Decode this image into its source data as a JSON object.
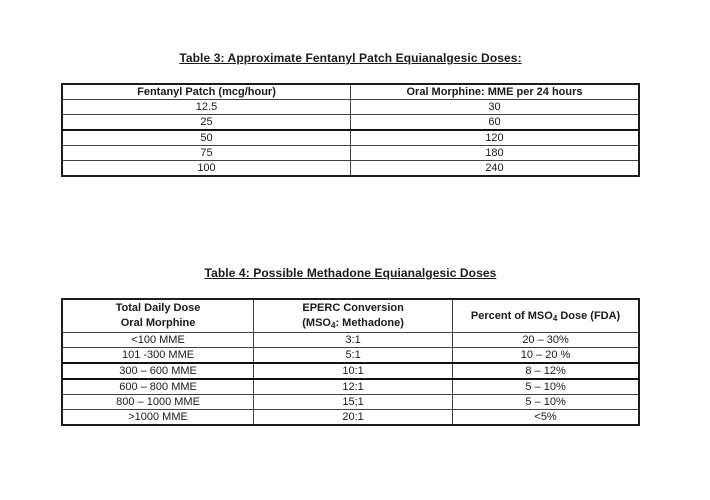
{
  "colors": {
    "background": "#ffffff",
    "text": "#1a1a1a",
    "inner_border": "#424242",
    "outer_border": "#1c1c1c"
  },
  "table3": {
    "title": "Table 3: Approximate Fentanyl Patch Equianalgesic Doses:",
    "columns": [
      "Fentanyl Patch (mcg/hour)",
      "Oral Morphine: MME per 24 hours"
    ],
    "rows": [
      [
        "12.5",
        "30"
      ],
      [
        "25",
        "60"
      ],
      [
        "50",
        "120"
      ],
      [
        "75",
        "180"
      ],
      [
        "100",
        "240"
      ]
    ]
  },
  "table4": {
    "title": "Table 4: Possible Methadone Equianalgesic Doses",
    "col1_header": {
      "line1": "Total Daily Dose",
      "line2": "Oral Morphine"
    },
    "col2_header": {
      "line1": "EPERC Conversion",
      "line2_pre": "(MSO",
      "line2_sub": "4",
      "line2_post": ": Methadone)"
    },
    "col3_header": {
      "pre": "Percent of MSO",
      "sub": "4",
      "post": " Dose (FDA)"
    },
    "rows": [
      [
        "<100 MME",
        "3:1",
        "20 – 30%"
      ],
      [
        "101 -300 MME",
        "5:1",
        "10 – 20 %"
      ],
      [
        "300 – 600 MME",
        "10:1",
        "8 – 12%"
      ],
      [
        "600 – 800 MME",
        "12:1",
        "5 – 10%"
      ],
      [
        "800 – 1000 MME",
        "15;1",
        "5 – 10%"
      ],
      [
        ">1000 MME",
        "20:1",
        "<5%"
      ]
    ]
  }
}
